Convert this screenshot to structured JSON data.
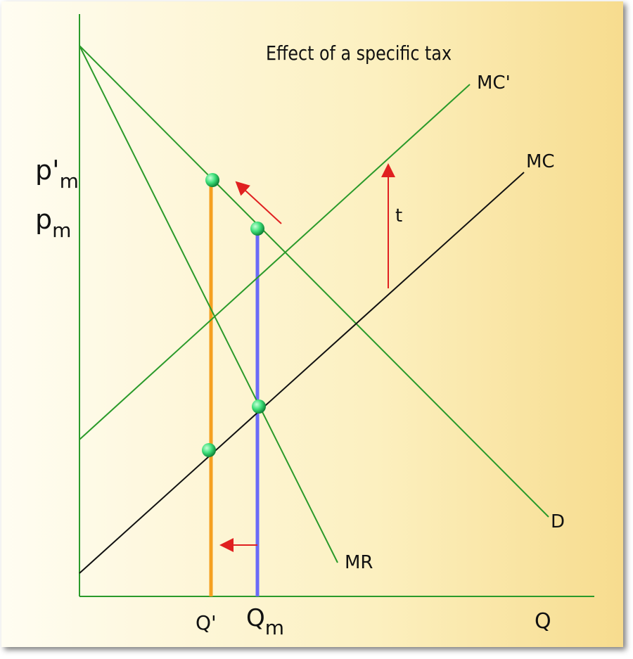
{
  "title": "Effect of a specific tax",
  "curves": {
    "mc_taxed": "MC'",
    "mc": "MC",
    "demand": "D",
    "mr": "MR"
  },
  "tax_label": "t",
  "y_labels": [
    {
      "text": "p'",
      "sub": "m"
    },
    {
      "text": "p",
      "sub": "m"
    }
  ],
  "x_labels": [
    {
      "text": "Q'"
    },
    {
      "text": "Q",
      "sub": "m"
    },
    {
      "text": "Q"
    }
  ]
}
